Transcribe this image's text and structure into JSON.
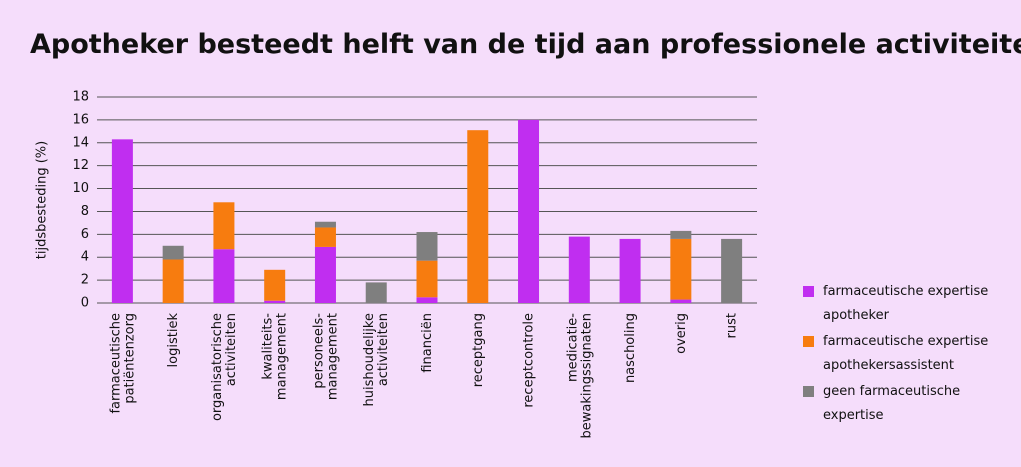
{
  "chart_data": {
    "type": "stacked-bar",
    "title": "Apotheker besteedt helft van de tijd aan professionele activiteiten",
    "y_label": "tijdsbesteding (%)",
    "categories": [
      "farmaceutische\npatiëntenzorg",
      "logistiek",
      "organisatorische\nactiviteiten",
      "kwaliteits-\nmanagement",
      "personeels-\nmanagement",
      "huishoudelijke\nactiviteiten",
      "financiën",
      "receptgang",
      "receptcontrole",
      "medicatie-\nbewakingssignaten",
      "nascholing",
      "overig",
      "rust"
    ],
    "series": [
      {
        "name": "farmaceutische expertise apotheker",
        "color": "#c02ef0",
        "values": [
          14.3,
          0,
          4.7,
          0.2,
          4.9,
          0,
          0.5,
          0,
          16.0,
          5.8,
          5.6,
          0.3,
          0
        ]
      },
      {
        "name": "farmaceutische expertise apothekersassistent",
        "color": "#f77c0f",
        "values": [
          0,
          3.8,
          4.1,
          2.7,
          1.7,
          0,
          3.2,
          15.1,
          0,
          0,
          0,
          5.3,
          0
        ]
      },
      {
        "name": "geen farmaceutische expertise",
        "color": "#7f7f7f",
        "values": [
          0,
          1.2,
          0,
          0,
          0.5,
          1.8,
          2.5,
          0,
          0,
          0,
          0,
          0.7,
          5.6
        ]
      }
    ],
    "ylim": [
      0,
      18
    ],
    "yticks": [
      0,
      2,
      4,
      6,
      8,
      10,
      12,
      14,
      16,
      18
    ],
    "grid": true
  }
}
